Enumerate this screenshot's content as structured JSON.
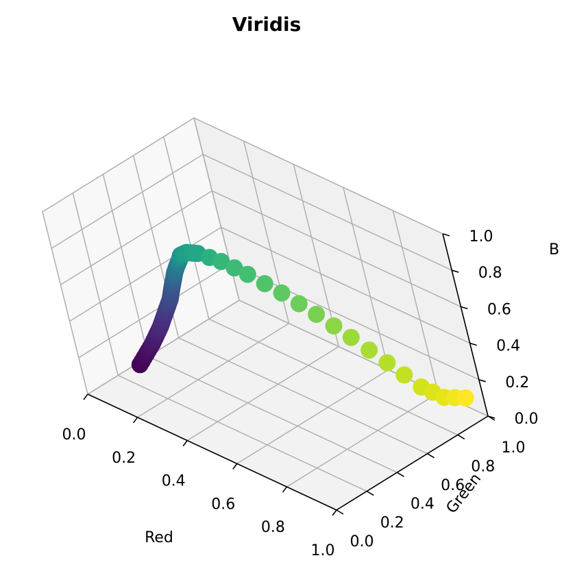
{
  "chart_data": {
    "type": "scatter3d",
    "title": "Viridis",
    "xlabel": "Red",
    "ylabel": "Green",
    "zlabel": "B",
    "xlim": [
      0,
      1
    ],
    "ylim": [
      0,
      1
    ],
    "zlim": [
      0,
      1
    ],
    "x_ticks": [
      "0.0",
      "0.2",
      "0.4",
      "0.6",
      "0.8",
      "1.0"
    ],
    "y_ticks": [
      "0.0",
      "0.2",
      "0.4",
      "0.6",
      "0.8",
      "1.0"
    ],
    "z_ticks": [
      "0.0",
      "0.2",
      "0.4",
      "0.6",
      "0.8",
      "1.0"
    ],
    "grid": true,
    "colormap": "viridis",
    "points": [
      {
        "r": 0.267,
        "g": 0.005,
        "b": 0.329,
        "color": "#440154"
      },
      {
        "r": 0.282,
        "g": 0.088,
        "b": 0.412,
        "color": "#481668"
      },
      {
        "r": 0.283,
        "g": 0.156,
        "b": 0.47,
        "color": "#482878"
      },
      {
        "r": 0.272,
        "g": 0.223,
        "b": 0.514,
        "color": "#453781"
      },
      {
        "r": 0.254,
        "g": 0.287,
        "b": 0.535,
        "color": "#3e4989"
      },
      {
        "r": 0.23,
        "g": 0.342,
        "b": 0.551,
        "color": "#3b528b"
      },
      {
        "r": 0.207,
        "g": 0.392,
        "b": 0.557,
        "color": "#355f8d"
      },
      {
        "r": 0.184,
        "g": 0.438,
        "b": 0.558,
        "color": "#2e6e8e"
      },
      {
        "r": 0.165,
        "g": 0.484,
        "b": 0.558,
        "color": "#2a788e"
      },
      {
        "r": 0.147,
        "g": 0.53,
        "b": 0.556,
        "color": "#25848e"
      },
      {
        "r": 0.128,
        "g": 0.567,
        "b": 0.551,
        "color": "#21918c"
      },
      {
        "r": 0.121,
        "g": 0.613,
        "b": 0.538,
        "color": "#1f9e89"
      },
      {
        "r": 0.135,
        "g": 0.659,
        "b": 0.518,
        "color": "#22a884"
      },
      {
        "r": 0.196,
        "g": 0.705,
        "b": 0.489,
        "color": "#35b779"
      },
      {
        "r": 0.267,
        "g": 0.749,
        "b": 0.441,
        "color": "#44bf70"
      },
      {
        "r": 0.369,
        "g": 0.789,
        "b": 0.383,
        "color": "#5ec962"
      },
      {
        "r": 0.477,
        "g": 0.821,
        "b": 0.318,
        "color": "#7ad151"
      },
      {
        "r": 0.59,
        "g": 0.845,
        "b": 0.251,
        "color": "#9bd93c"
      },
      {
        "r": 0.706,
        "g": 0.869,
        "b": 0.173,
        "color": "#b5de2b"
      },
      {
        "r": 0.822,
        "g": 0.884,
        "b": 0.106,
        "color": "#d2e21b"
      },
      {
        "r": 0.906,
        "g": 0.894,
        "b": 0.098,
        "color": "#e7e419"
      },
      {
        "r": 0.993,
        "g": 0.906,
        "b": 0.144,
        "color": "#fde725"
      }
    ]
  }
}
